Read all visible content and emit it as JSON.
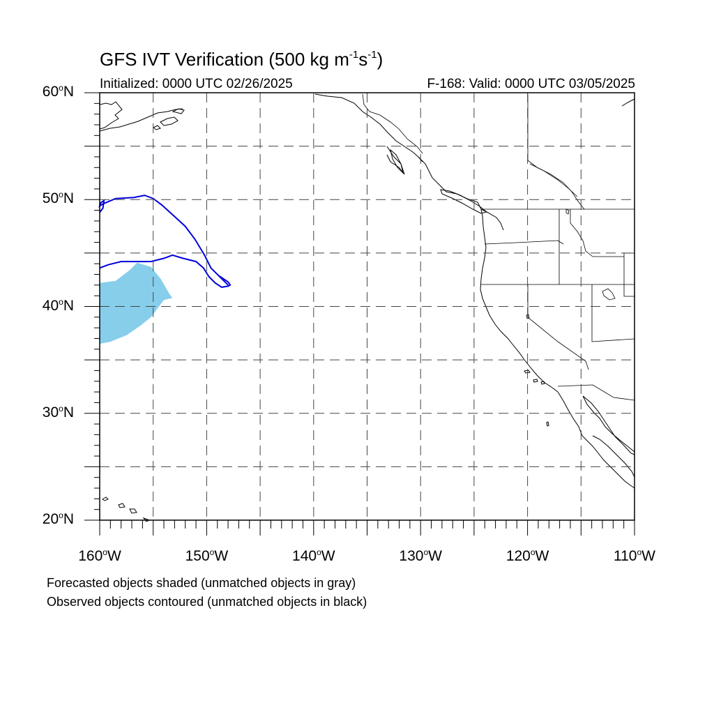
{
  "title": {
    "text": "GFS IVT Verification (500 kg m",
    "sup1": "-1",
    "mid": "s",
    "sup2": "-1",
    "close": ")"
  },
  "initialized": "Initialized: 0000 UTC 02/26/2025",
  "valid": "F-168: Valid: 0000 UTC 03/05/2025",
  "map": {
    "lon_range": [
      -160,
      -110
    ],
    "lat_range": [
      20,
      60
    ],
    "projection": "cylindrical-equidistant",
    "grid": true,
    "lat_labels": [
      {
        "value": 60,
        "num": "60",
        "deg": "o",
        "hem": "N"
      },
      {
        "value": 50,
        "num": "50",
        "deg": "o",
        "hem": "N"
      },
      {
        "value": 40,
        "num": "40",
        "deg": "o",
        "hem": "N"
      },
      {
        "value": 30,
        "num": "30",
        "deg": "o",
        "hem": "N"
      },
      {
        "value": 20,
        "num": "20",
        "deg": "o",
        "hem": "N"
      }
    ],
    "lon_labels": [
      {
        "value": -160,
        "num": "160",
        "deg": "o",
        "hem": "W"
      },
      {
        "value": -150,
        "num": "150",
        "deg": "o",
        "hem": "W"
      },
      {
        "value": -140,
        "num": "140",
        "deg": "o",
        "hem": "W"
      },
      {
        "value": -130,
        "num": "130",
        "deg": "o",
        "hem": "W"
      },
      {
        "value": -120,
        "num": "120",
        "deg": "o",
        "hem": "W"
      },
      {
        "value": -110,
        "num": "110",
        "deg": "o",
        "hem": "W"
      }
    ],
    "forecast_object": {
      "color": "#87ceeb",
      "outline_lonlat": [
        [
          -160,
          42.2
        ],
        [
          -158.5,
          42.4
        ],
        [
          -157.2,
          43.4
        ],
        [
          -156.5,
          44.1
        ],
        [
          -155.2,
          43.7
        ],
        [
          -154.3,
          42.6
        ],
        [
          -153.5,
          41.2
        ],
        [
          -153.2,
          40.8
        ],
        [
          -154.0,
          40.6
        ],
        [
          -155.2,
          39.0
        ],
        [
          -156.2,
          38.2
        ],
        [
          -157.5,
          37.3
        ],
        [
          -159.0,
          36.7
        ],
        [
          -160,
          36.5
        ]
      ]
    },
    "observed_objects": [
      {
        "color": "#0000dd",
        "path_lonlat": [
          [
            -160,
            48.8
          ],
          [
            -159.7,
            49.2
          ],
          [
            -159.6,
            49.9
          ],
          [
            -159.9,
            49.7
          ],
          [
            -160,
            49.4
          ],
          [
            -159.7,
            49.6
          ],
          [
            -158.5,
            50.1
          ],
          [
            -156.8,
            50.2
          ],
          [
            -155.8,
            50.4
          ],
          [
            -155.0,
            50.1
          ],
          [
            -154.2,
            49.5
          ],
          [
            -153.2,
            48.6
          ],
          [
            -152.0,
            47.5
          ],
          [
            -151.1,
            46.3
          ],
          [
            -150.2,
            44.8
          ],
          [
            -149.6,
            43.6
          ],
          [
            -148.9,
            42.9
          ],
          [
            -148.0,
            42.0
          ]
        ]
      },
      {
        "color": "#0000dd",
        "path_lonlat": [
          [
            -160,
            43.6
          ],
          [
            -159.2,
            43.9
          ],
          [
            -158.0,
            44.2
          ],
          [
            -156.6,
            44.2
          ],
          [
            -155.2,
            44.2
          ],
          [
            -154.0,
            44.5
          ],
          [
            -153.2,
            44.8
          ],
          [
            -152.2,
            44.5
          ],
          [
            -151.0,
            44.2
          ],
          [
            -150.3,
            43.6
          ],
          [
            -149.8,
            42.8
          ],
          [
            -149.2,
            42.2
          ],
          [
            -148.6,
            41.8
          ],
          [
            -148.0,
            41.9
          ],
          [
            -147.8,
            42.0
          ],
          [
            -148.0,
            42.3
          ],
          [
            -148.9,
            42.9
          ]
        ]
      }
    ]
  },
  "notes": [
    "Forecasted objects shaded (unmatched objects in gray)",
    "Observed objects contoured (unmatched objects in black)"
  ]
}
